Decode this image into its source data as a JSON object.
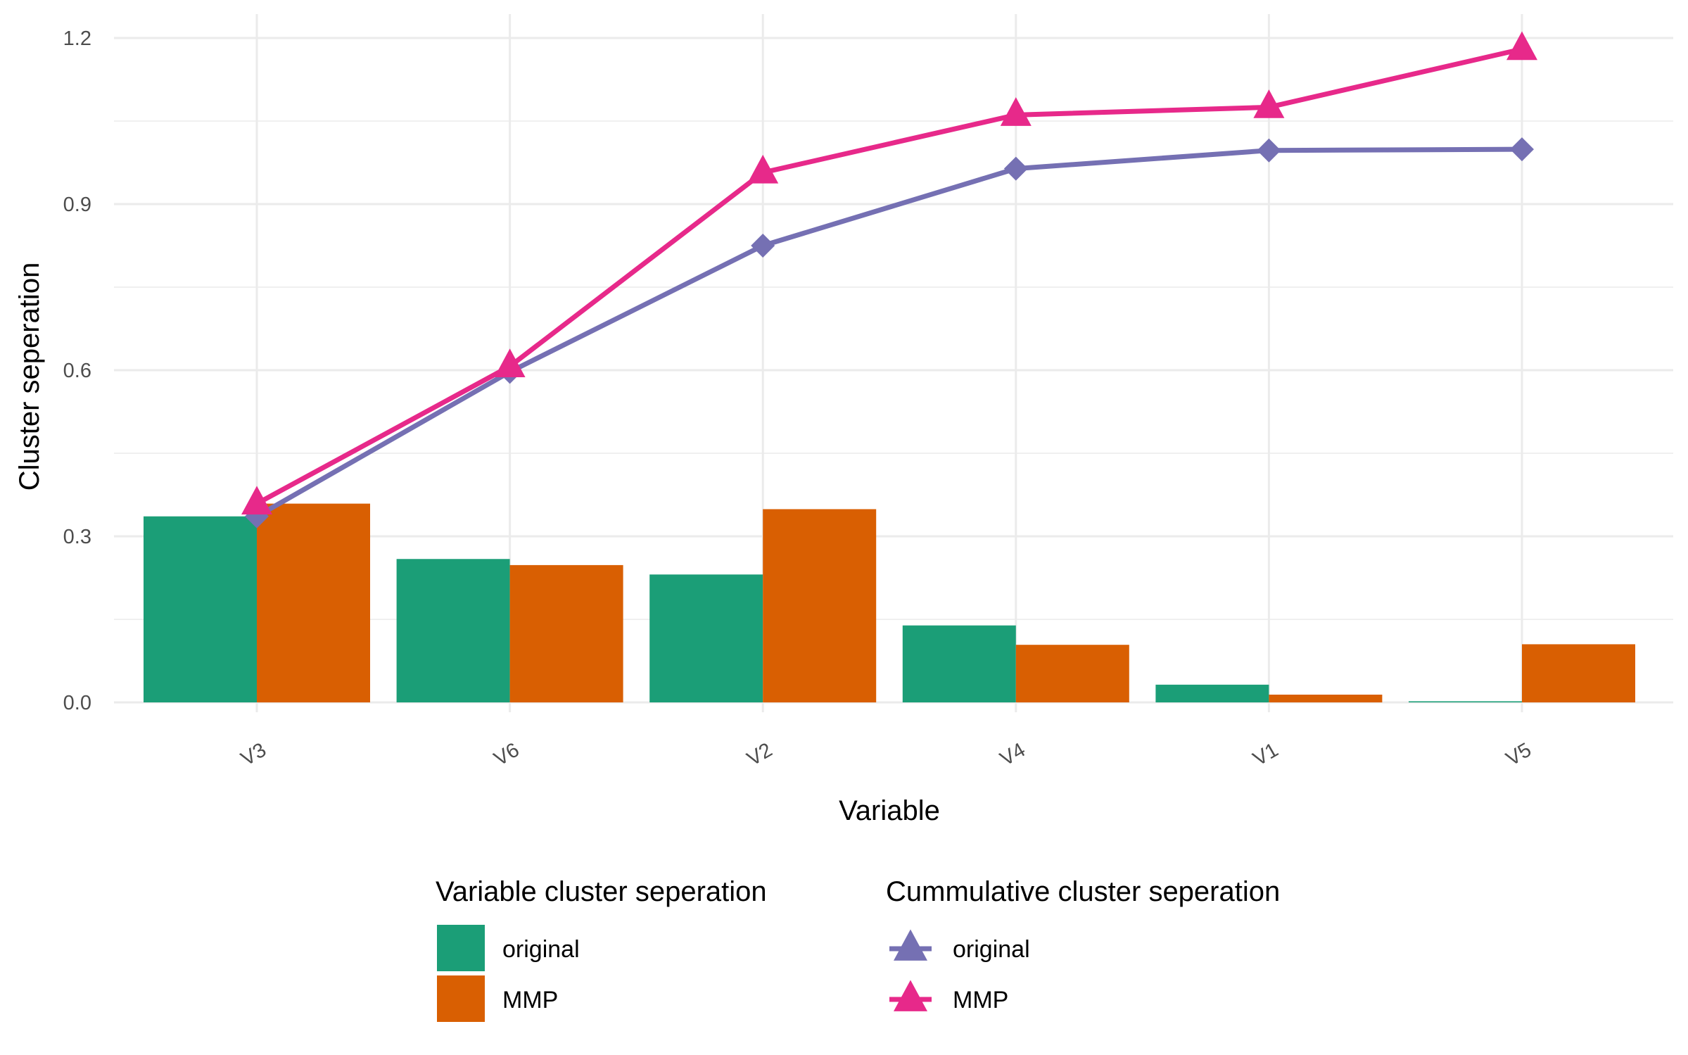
{
  "chart_data": {
    "type": "bar",
    "title": "",
    "xlabel": "Variable",
    "ylabel": "Cluster seperation",
    "categories": [
      "V3",
      "V6",
      "V2",
      "V4",
      "V1",
      "V5"
    ],
    "ylim": [
      0,
      1.2
    ],
    "yticks": [
      0.0,
      0.3,
      0.6,
      0.9,
      1.2
    ],
    "ytick_labels": [
      "0.0",
      "0.3",
      "0.6",
      "0.9",
      "1.2"
    ],
    "grid": true,
    "legend_position": "bottom",
    "bar_legend_title": "Variable cluster seperation",
    "line_legend_title": "Cummulative cluster seperation",
    "bar_series": [
      {
        "name": "original",
        "color": "#1b9e77",
        "values": [
          0.336,
          0.259,
          0.231,
          0.139,
          0.032,
          0.002
        ]
      },
      {
        "name": "MMP",
        "color": "#d95f02",
        "values": [
          0.359,
          0.248,
          0.349,
          0.104,
          0.014,
          0.105
        ]
      }
    ],
    "line_series": [
      {
        "name": "original",
        "color": "#7570b3",
        "marker": "diamond",
        "values": [
          0.336,
          0.597,
          0.825,
          0.964,
          0.997,
          0.999
        ]
      },
      {
        "name": "MMP",
        "color": "#e7298a",
        "marker": "triangle",
        "values": [
          0.359,
          0.607,
          0.957,
          1.061,
          1.075,
          1.18
        ]
      }
    ]
  }
}
